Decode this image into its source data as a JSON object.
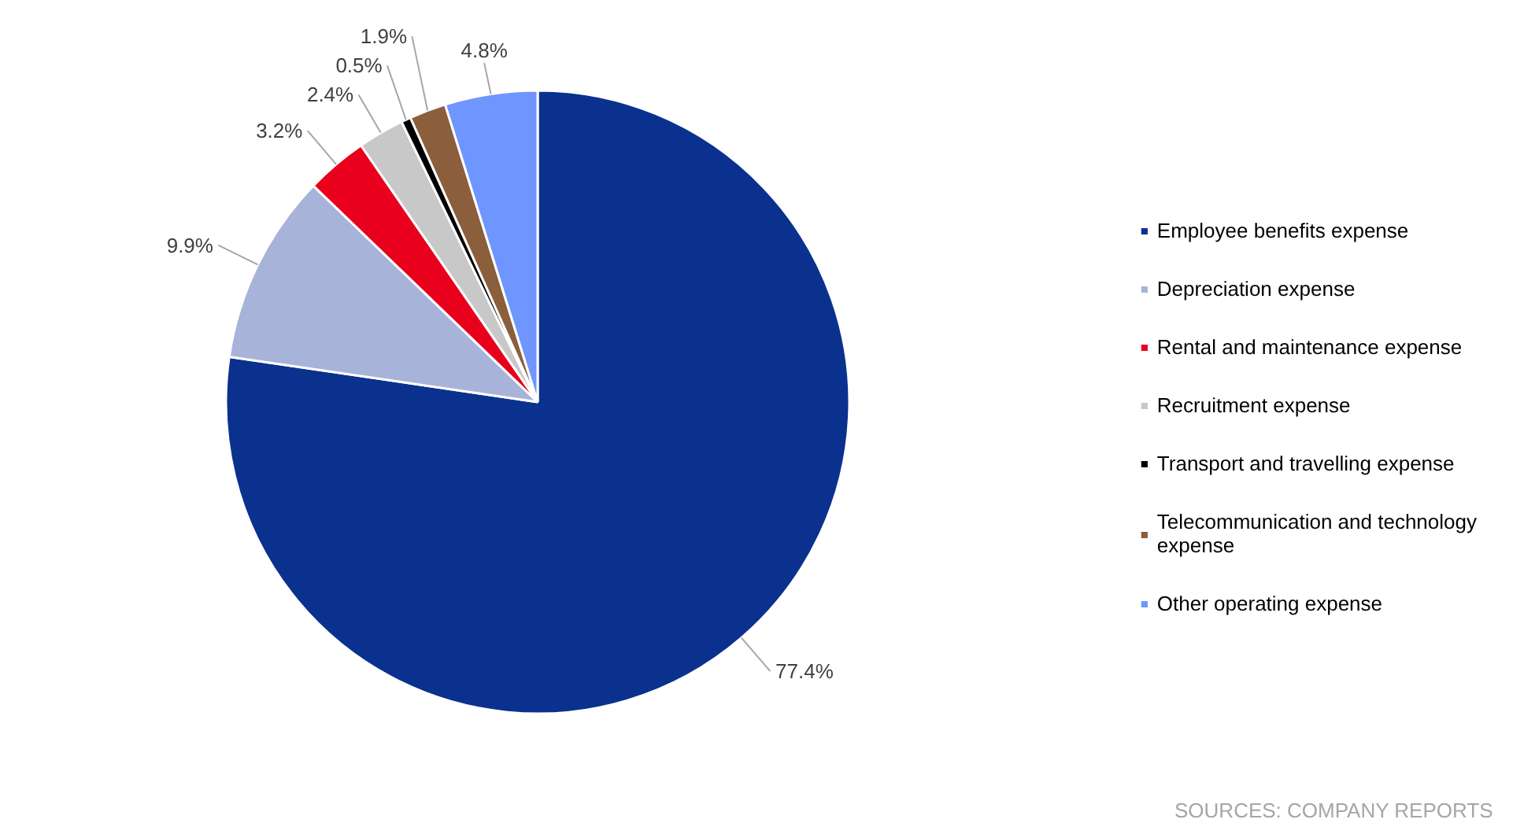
{
  "chart_data": {
    "type": "pie",
    "categories": [
      "Employee benefits expense",
      "Depreciation expense",
      "Rental and maintenance expense",
      "Recruitment expense",
      "Transport and travelling expense",
      "Telecommunication and technology expense",
      "Other operating expense"
    ],
    "values": [
      77.4,
      9.9,
      3.2,
      2.4,
      0.5,
      1.9,
      4.8
    ],
    "colors": [
      "#0b318f",
      "#a7b3d9",
      "#e8001c",
      "#c8c8c8",
      "#000000",
      "#8b5e3c",
      "#6f96ff"
    ],
    "value_labels": [
      "77.4%",
      "9.9%",
      "3.2%",
      "2.4%",
      "0.5%",
      "1.9%",
      "4.8%"
    ],
    "legend": "right",
    "annotations": [
      "SOURCES: COMPANY REPORTS"
    ]
  }
}
